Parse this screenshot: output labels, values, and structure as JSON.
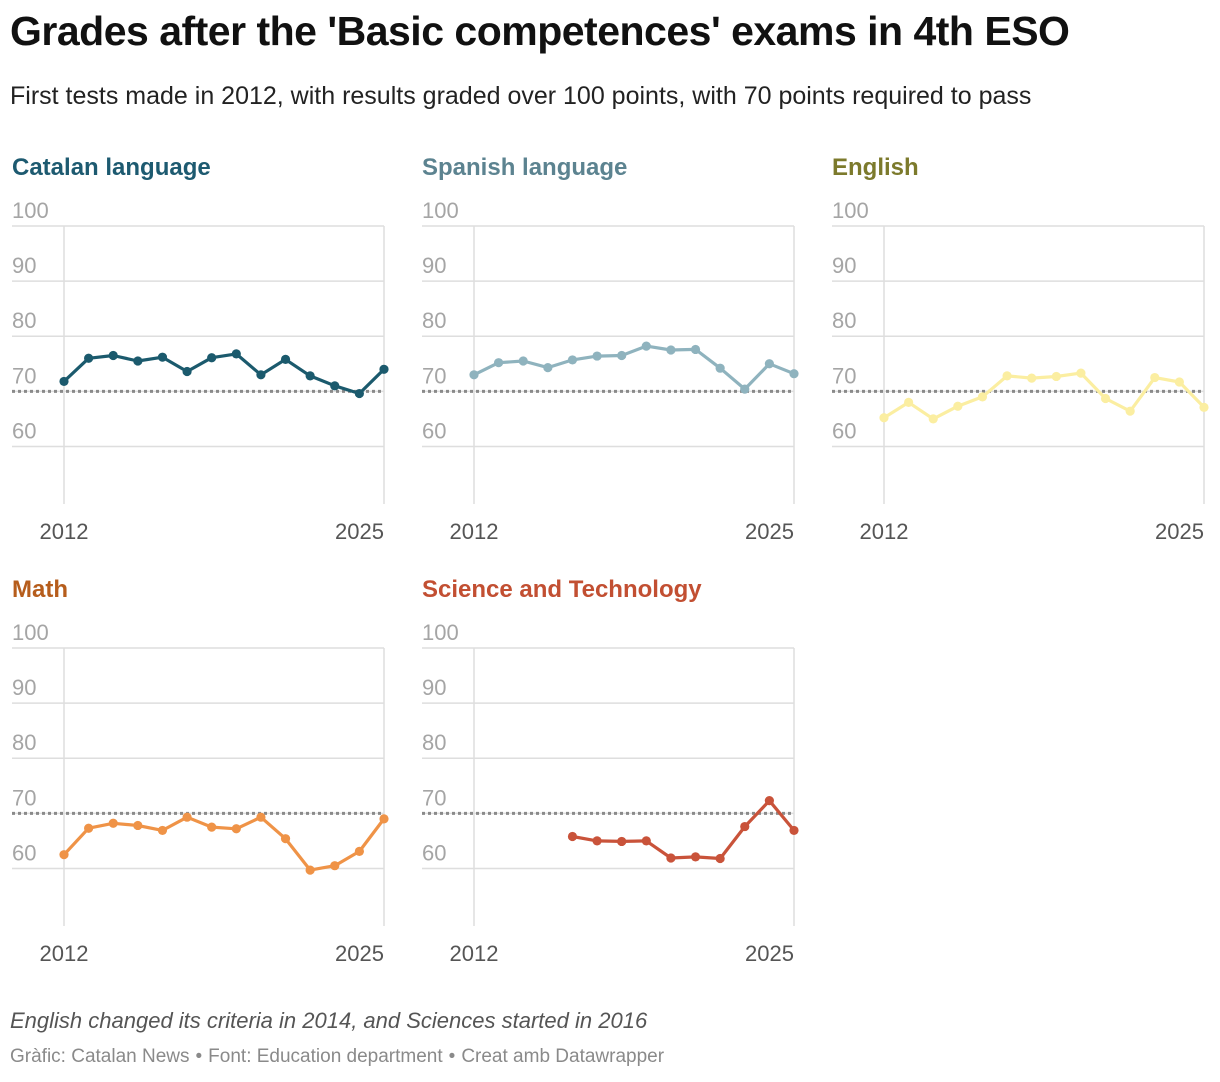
{
  "title": "Grades after the 'Basic competences' exams in 4th ESO",
  "subtitle": "First tests made in 2012, with results graded over 100 points, with 70 points required to pass",
  "note": "English changed its criteria in 2014, and Sciences started in 2016",
  "credits": {
    "chart_by": "Gràfic: Catalan News",
    "source": "Font: Education department",
    "tool": "Creat amb Datawrapper",
    "separator": "•"
  },
  "chart_data": [
    {
      "type": "line",
      "title": "Catalan language",
      "title_color": "#1d5a70",
      "line_color": "#1b5a6d",
      "x": [
        2012,
        2013,
        2014,
        2015,
        2016,
        2017,
        2018,
        2019,
        2020,
        2021,
        2022,
        2023,
        2024,
        2025
      ],
      "values": [
        71.8,
        76.0,
        76.5,
        75.5,
        76.2,
        73.6,
        76.1,
        76.8,
        73.0,
        75.8,
        72.8,
        71.0,
        69.6,
        74.0
      ],
      "ylim": [
        55,
        100
      ],
      "yticks": [
        60,
        70,
        80,
        90,
        100
      ],
      "xtick_labels": [
        "2012",
        "2025"
      ],
      "pass_mark": 70
    },
    {
      "type": "line",
      "title": "Spanish language",
      "title_color": "#5c8390",
      "line_color": "#8fb3be",
      "x": [
        2012,
        2013,
        2014,
        2015,
        2016,
        2017,
        2018,
        2019,
        2020,
        2021,
        2022,
        2023,
        2024,
        2025
      ],
      "values": [
        73.0,
        75.2,
        75.5,
        74.3,
        75.7,
        76.4,
        76.5,
        78.2,
        77.5,
        77.6,
        74.2,
        70.4,
        75.0,
        73.2
      ],
      "ylim": [
        55,
        100
      ],
      "yticks": [
        60,
        70,
        80,
        90,
        100
      ],
      "xtick_labels": [
        "2012",
        "2025"
      ],
      "pass_mark": 70
    },
    {
      "type": "line",
      "title": "English",
      "title_color": "#7c7a2c",
      "line_color": "#fbeea1",
      "x": [
        2012,
        2013,
        2014,
        2015,
        2016,
        2017,
        2018,
        2019,
        2020,
        2021,
        2022,
        2023,
        2024,
        2025
      ],
      "values": [
        65.2,
        68.0,
        65.0,
        67.3,
        69.0,
        72.8,
        72.4,
        72.7,
        73.3,
        68.7,
        66.4,
        72.5,
        71.7,
        67.1
      ],
      "ylim": [
        55,
        100
      ],
      "yticks": [
        60,
        70,
        80,
        90,
        100
      ],
      "xtick_labels": [
        "2012",
        "2025"
      ],
      "pass_mark": 70
    },
    {
      "type": "line",
      "title": "Math",
      "title_color": "#b65d1c",
      "line_color": "#ef9347",
      "x": [
        2012,
        2013,
        2014,
        2015,
        2016,
        2017,
        2018,
        2019,
        2020,
        2021,
        2022,
        2023,
        2024,
        2025
      ],
      "values": [
        62.5,
        67.3,
        68.2,
        67.8,
        66.9,
        69.3,
        67.5,
        67.2,
        69.3,
        65.4,
        59.7,
        60.5,
        63.1,
        69.0
      ],
      "ylim": [
        55,
        100
      ],
      "yticks": [
        60,
        70,
        80,
        90,
        100
      ],
      "xtick_labels": [
        "2012",
        "2025"
      ],
      "pass_mark": 70
    },
    {
      "type": "line",
      "title": "Science and Technology",
      "title_color": "#c24f32",
      "line_color": "#c9533a",
      "x": [
        2016,
        2017,
        2018,
        2019,
        2020,
        2021,
        2022,
        2023,
        2024,
        2025
      ],
      "values": [
        65.8,
        65.0,
        64.9,
        65.0,
        61.9,
        62.1,
        61.8,
        67.6,
        72.3,
        66.9
      ],
      "ylim": [
        55,
        100
      ],
      "yticks": [
        60,
        70,
        80,
        90,
        100
      ],
      "xtick_labels": [
        "2012",
        "2025"
      ],
      "pass_mark": 70
    }
  ]
}
